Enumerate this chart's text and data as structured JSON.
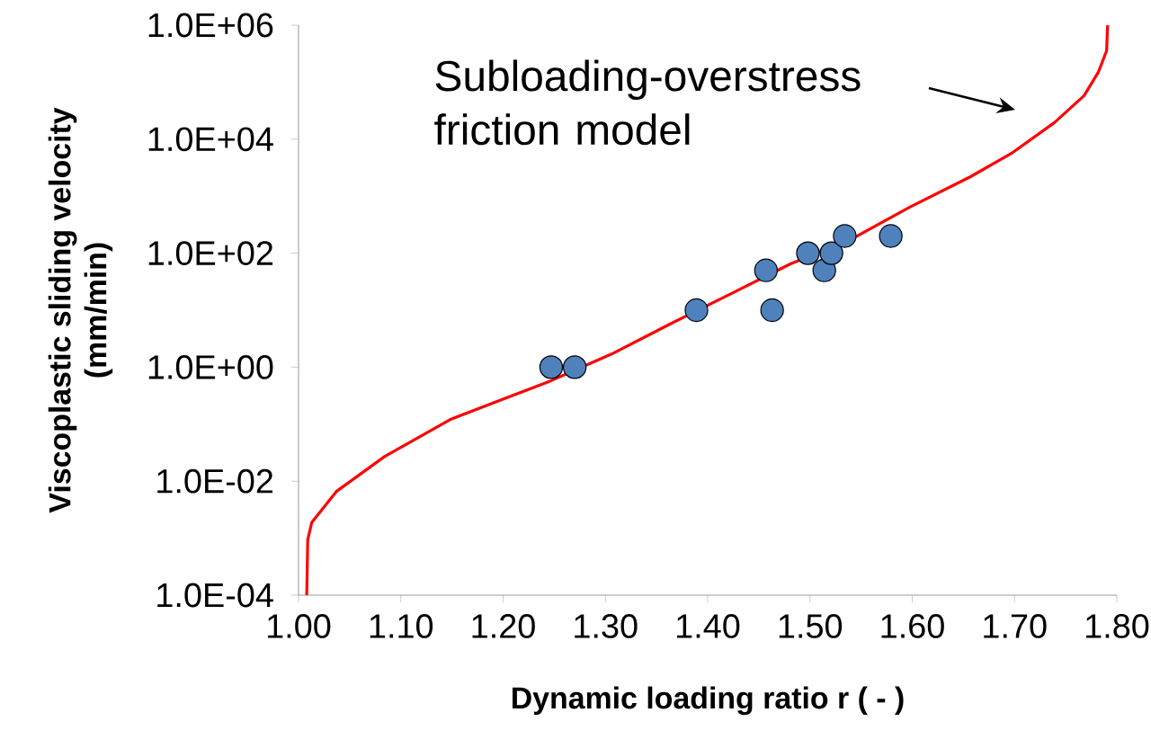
{
  "chart_data": {
    "type": "scatter",
    "xlabel": "Dynamic loading ratio  r ( - )",
    "ylabel": "Viscoplastic sliding velocity (mm/min)",
    "log": "y",
    "grid": false,
    "xlim": [
      1.0,
      1.8
    ],
    "ylim": [
      0.0001,
      1000000
    ],
    "xticks": [
      {
        "value": 1.0,
        "label": "1.00"
      },
      {
        "value": 1.1,
        "label": "1.10"
      },
      {
        "value": 1.2,
        "label": "1.20"
      },
      {
        "value": 1.3,
        "label": "1.30"
      },
      {
        "value": 1.4,
        "label": "1.40"
      },
      {
        "value": 1.5,
        "label": "1.50"
      },
      {
        "value": 1.6,
        "label": "1.60"
      },
      {
        "value": 1.7,
        "label": "1.70"
      },
      {
        "value": 1.8,
        "label": "1.80"
      }
    ],
    "yticks": [
      {
        "value": 0.0001,
        "label": "1.0E-04"
      },
      {
        "value": 0.01,
        "label": "1.0E-02"
      },
      {
        "value": 1,
        "label": "1.0E+00"
      },
      {
        "value": 100,
        "label": "1.0E+02"
      },
      {
        "value": 10000,
        "label": "1.0E+04"
      },
      {
        "value": 1000000,
        "label": "1.0E+06"
      }
    ],
    "series": [
      {
        "type": "line",
        "color": "#ff0000",
        "line_style": "solid",
        "marker": "none",
        "x": [
          1.008,
          1.009,
          1.013,
          1.037,
          1.084,
          1.148,
          1.201,
          1.247,
          1.306,
          1.364,
          1.423,
          1.481,
          1.54,
          1.598,
          1.657,
          1.698,
          1.739,
          1.768,
          1.782,
          1.79,
          1.791
        ],
        "values": [
          0.0001,
          0.00095,
          0.0019,
          0.0066,
          0.027,
          0.12,
          0.28,
          0.58,
          1.7,
          5.8,
          19.5,
          65,
          174,
          650,
          2200,
          5800,
          19500,
          58000,
          151000,
          355000,
          1000000
        ]
      },
      {
        "color": "#4f81bd",
        "marker": "circle",
        "x": [
          1.247,
          1.27,
          1.389,
          1.457,
          1.463,
          1.498,
          1.514,
          1.521,
          1.534,
          1.579
        ],
        "values": [
          1,
          1,
          10,
          50,
          10,
          100,
          50,
          100,
          200,
          200
        ]
      }
    ],
    "annotations": [
      "Subloading-overstress friction model"
    ]
  }
}
